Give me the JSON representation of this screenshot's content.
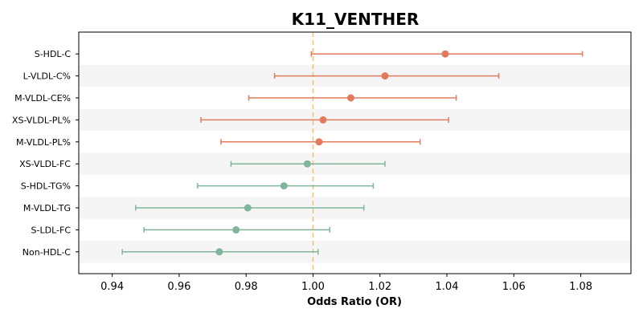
{
  "chart_data": {
    "type": "scatter",
    "title": "K11_VENTHER",
    "xlabel": "Odds Ratio (OR)",
    "ylabel": "",
    "xlim": [
      0.93,
      1.095
    ],
    "xticks": [
      "0.94",
      "0.96",
      "0.98",
      "1.00",
      "1.02",
      "1.04",
      "1.06",
      "1.08"
    ],
    "reference_line": 1.0,
    "grid": false,
    "colors": {
      "positive": "#e07b5d",
      "negative": "#7fb59a",
      "reference": "#f2c27a",
      "band": "#f5f5f5"
    },
    "rows": [
      {
        "label": "S-HDL-C",
        "or": 1.0395,
        "lower": 0.9995,
        "upper": 1.0805
      },
      {
        "label": "L-VLDL-C%",
        "or": 1.0215,
        "lower": 0.9885,
        "upper": 1.0555
      },
      {
        "label": "M-VLDL-CE%",
        "or": 1.0113,
        "lower": 0.9808,
        "upper": 1.0428
      },
      {
        "label": "XS-VLDL-PL%",
        "or": 1.003,
        "lower": 0.9665,
        "upper": 1.0405
      },
      {
        "label": "M-VLDL-PL%",
        "or": 1.0018,
        "lower": 0.9725,
        "upper": 1.032
      },
      {
        "label": "XS-VLDL-FC",
        "or": 0.9983,
        "lower": 0.9755,
        "upper": 1.0215
      },
      {
        "label": "S-HDL-TG%",
        "or": 0.9913,
        "lower": 0.9655,
        "upper": 1.018
      },
      {
        "label": "M-VLDL-TG",
        "or": 0.9805,
        "lower": 0.947,
        "upper": 1.0152
      },
      {
        "label": "S-LDL-FC",
        "or": 0.977,
        "lower": 0.9495,
        "upper": 1.005
      },
      {
        "label": "Non-HDL-C",
        "or": 0.972,
        "lower": 0.943,
        "upper": 1.0015
      }
    ]
  }
}
